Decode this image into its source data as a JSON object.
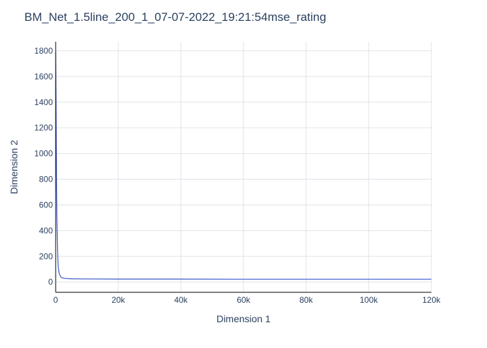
{
  "chart_data": {
    "type": "line",
    "title": "BM_Net_1.5line_200_1_07-07-2022_19:21:54mse_rating",
    "xlabel": "Dimension 1",
    "ylabel": "Dimension 2",
    "xlim": [
      0,
      120000
    ],
    "ylim": [
      -80,
      1870
    ],
    "x_ticks": [
      0,
      20000,
      40000,
      60000,
      80000,
      100000,
      120000
    ],
    "x_tick_labels": [
      "0",
      "20k",
      "40k",
      "60k",
      "80k",
      "100k",
      "120k"
    ],
    "y_ticks": [
      0,
      200,
      400,
      600,
      800,
      1000,
      1200,
      1400,
      1600,
      1800
    ],
    "y_tick_labels": [
      "0",
      "200",
      "400",
      "600",
      "800",
      "1000",
      "1200",
      "1400",
      "1600",
      "1800"
    ],
    "grid": true,
    "series": [
      {
        "color": "#3a56c8",
        "x": [
          0,
          100,
          200,
          300,
          400,
          600,
          800,
          1200,
          1800,
          3000,
          5000,
          10000,
          20000,
          40000,
          60000,
          80000,
          100000,
          120000
        ],
        "y": [
          1790,
          1500,
          1100,
          750,
          500,
          250,
          120,
          60,
          35,
          28,
          25,
          24,
          23,
          23,
          22,
          22,
          22,
          22
        ]
      }
    ]
  }
}
